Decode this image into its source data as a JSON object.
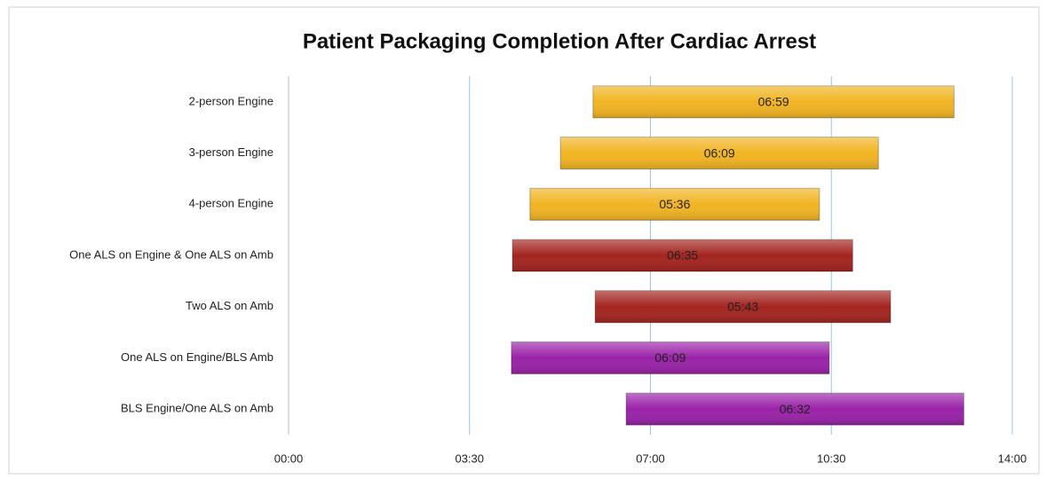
{
  "chart_data": {
    "type": "floating-bar",
    "title": "Patient Packaging Completion After Cardiac Arrest",
    "categories": [
      "2-person Engine",
      "3-person Engine",
      "4-person Engine",
      "One ALS on Engine & One ALS on Amb",
      "Two ALS on Amb",
      "One ALS on Engine/BLS Amb",
      "BLS Engine/One ALS on Amb"
    ],
    "starts": [
      5.89,
      5.26,
      4.67,
      4.33,
      5.93,
      4.31,
      6.53
    ],
    "values": [
      6.983,
      6.15,
      5.6,
      6.583,
      5.717,
      6.15,
      6.533
    ],
    "value_labels": [
      "06:59",
      "06:09",
      "05:36",
      "06:35",
      "05:43",
      "06:09",
      "06:32"
    ],
    "colors": [
      "#f1b422",
      "#f1b422",
      "#f1b422",
      "#a3241f",
      "#a3241f",
      "#9a22a8",
      "#9a22a8"
    ],
    "xlim": [
      0,
      14
    ],
    "xticks": [
      {
        "value": 0,
        "label": "00:00"
      },
      {
        "value": 3.5,
        "label": "03:30"
      },
      {
        "value": 7,
        "label": "07:00"
      },
      {
        "value": 10.5,
        "label": "10:30"
      },
      {
        "value": 14,
        "label": "14:00"
      }
    ],
    "grid": true
  }
}
